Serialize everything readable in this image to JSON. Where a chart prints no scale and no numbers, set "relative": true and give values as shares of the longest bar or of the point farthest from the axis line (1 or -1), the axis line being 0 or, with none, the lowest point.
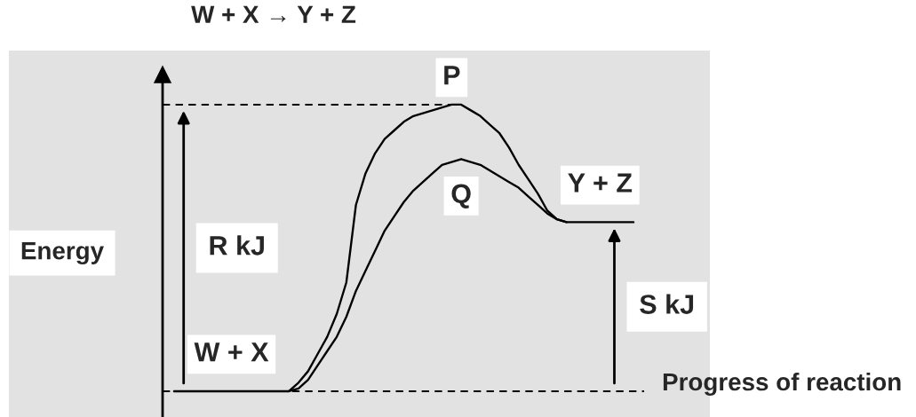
{
  "chart_data": {
    "type": "line",
    "title": "W + X → Y + Z",
    "xlabel": "Progress of reaction",
    "ylabel": "Energy",
    "relative": true,
    "categories": [
      null,
      null,
      null,
      null,
      null,
      null,
      null,
      null,
      null,
      null,
      null,
      null,
      null,
      null,
      null,
      null,
      null,
      null,
      null,
      null,
      null,
      null,
      null,
      null,
      null,
      null,
      null,
      null,
      null,
      null,
      null,
      null,
      null,
      null,
      null,
      null,
      null,
      null,
      null,
      null,
      null,
      null,
      null,
      null,
      null,
      null,
      null,
      null,
      null
    ],
    "series": [
      {
        "name": "P",
        "color": "#000000",
        "values": [
          0,
          0,
          0,
          0,
          0,
          0,
          0,
          0,
          0,
          0,
          0,
          0,
          0,
          0.03,
          0.07,
          0.13,
          0.19,
          0.27,
          0.38,
          0.65,
          0.76,
          0.83,
          0.88,
          0.91,
          0.94,
          0.96,
          0.97,
          0.98,
          0.99,
          1,
          1,
          0.98,
          0.96,
          0.93,
          0.9,
          0.85,
          0.79,
          0.74,
          0.69,
          0.63,
          0.6,
          0.59,
          0.59,
          0.59,
          0.59,
          0.59,
          0.59,
          0.59,
          0.59
        ]
      },
      {
        "name": "Q",
        "color": "#000000",
        "values": [
          null,
          null,
          null,
          null,
          null,
          null,
          null,
          null,
          null,
          null,
          null,
          null,
          0,
          0.01,
          0.04,
          0.09,
          0.14,
          0.19,
          0.26,
          0.35,
          0.42,
          0.49,
          0.56,
          0.61,
          0.66,
          0.7,
          0.73,
          0.76,
          0.79,
          0.8,
          0.81,
          0.8,
          0.79,
          0.77,
          0.75,
          0.73,
          0.71,
          0.68,
          0.65,
          0.62,
          0.6,
          0.59,
          null,
          null,
          null,
          null,
          null,
          null,
          null
        ]
      }
    ],
    "ref_lines": [
      {
        "axis": "y",
        "value": 1,
        "line_style": "dashed",
        "color": "#000000"
      },
      {
        "axis": "y",
        "value": 0,
        "line_style": "dashed",
        "color": "#000000"
      }
    ],
    "annotations": [
      {
        "text": "W + X",
        "y": 0
      },
      "R kJ",
      {
        "text": "Y + Z",
        "y": 0.59
      },
      "S kJ"
    ]
  }
}
